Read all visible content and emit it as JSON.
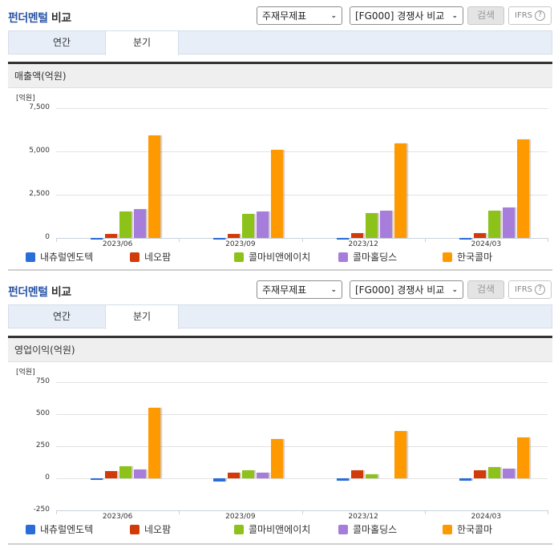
{
  "sections": [
    {
      "title_blue": "펀더멘털",
      "title_rest": " 비교",
      "select_statement": "주재무제표",
      "select_group": "[FG000] 경쟁사 비교",
      "search_label": "검색",
      "ifrs_label": "IFRS",
      "ifrs_help": "?",
      "tabs": [
        {
          "label": "연간",
          "active": false
        },
        {
          "label": "분기",
          "active": true
        }
      ],
      "panel_title": "매출액(억원)",
      "unit": "[억원]"
    },
    {
      "title_blue": "펀더멘털",
      "title_rest": " 비교",
      "select_statement": "주재무제표",
      "select_group": "[FG000] 경쟁사 비교",
      "search_label": "검색",
      "ifrs_label": "IFRS",
      "ifrs_help": "?",
      "tabs": [
        {
          "label": "연간",
          "active": false
        },
        {
          "label": "분기",
          "active": true
        }
      ],
      "panel_title": "영업이익(억원)",
      "unit": "[억원]"
    }
  ],
  "legend": [
    {
      "name": "내츄럴엔도텍",
      "color": "#2a6dd9"
    },
    {
      "name": "네오팜",
      "color": "#d23a0a"
    },
    {
      "name": "콜마비앤에이치",
      "color": "#8cc21a"
    },
    {
      "name": "콜마홀딩스",
      "color": "#a77ddb"
    },
    {
      "name": "한국콜마",
      "color": "#ff9900"
    }
  ],
  "chart_data": [
    {
      "type": "bar",
      "title": "매출액(억원)",
      "ylabel": "[억원]",
      "xlabel": "",
      "categories": [
        "2023/06",
        "2023/09",
        "2023/12",
        "2024/03"
      ],
      "yticks": [
        "7,500",
        "5,000",
        "2,500",
        "0"
      ],
      "ylim": [
        0,
        7500
      ],
      "grid": true,
      "legend_position": "bottom",
      "series": [
        {
          "name": "내츄럴엔도텍",
          "values": [
            20,
            20,
            20,
            20
          ]
        },
        {
          "name": "네오팜",
          "values": [
            230,
            230,
            270,
            270
          ]
        },
        {
          "name": "콜마비앤에이치",
          "values": [
            1530,
            1390,
            1440,
            1570
          ]
        },
        {
          "name": "콜마홀딩스",
          "values": [
            1670,
            1530,
            1580,
            1760
          ]
        },
        {
          "name": "한국콜마",
          "values": [
            5930,
            5100,
            5460,
            5700
          ]
        }
      ]
    },
    {
      "type": "bar",
      "title": "영업이익(억원)",
      "ylabel": "[억원]",
      "xlabel": "",
      "categories": [
        "2023/06",
        "2023/09",
        "2023/12",
        "2024/03"
      ],
      "yticks": [
        "750",
        "500",
        "250",
        "0",
        "-250"
      ],
      "ylim": [
        -250,
        750
      ],
      "grid": true,
      "legend_position": "bottom",
      "series": [
        {
          "name": "내츄럴엔도텍",
          "values": [
            -15,
            -25,
            -20,
            -20
          ]
        },
        {
          "name": "네오팜",
          "values": [
            58,
            45,
            62,
            62
          ]
        },
        {
          "name": "콜마비앤에이치",
          "values": [
            95,
            62,
            33,
            90
          ]
        },
        {
          "name": "콜마홀딩스",
          "values": [
            70,
            45,
            0,
            75
          ]
        },
        {
          "name": "한국콜마",
          "values": [
            550,
            305,
            370,
            320
          ]
        }
      ]
    }
  ]
}
